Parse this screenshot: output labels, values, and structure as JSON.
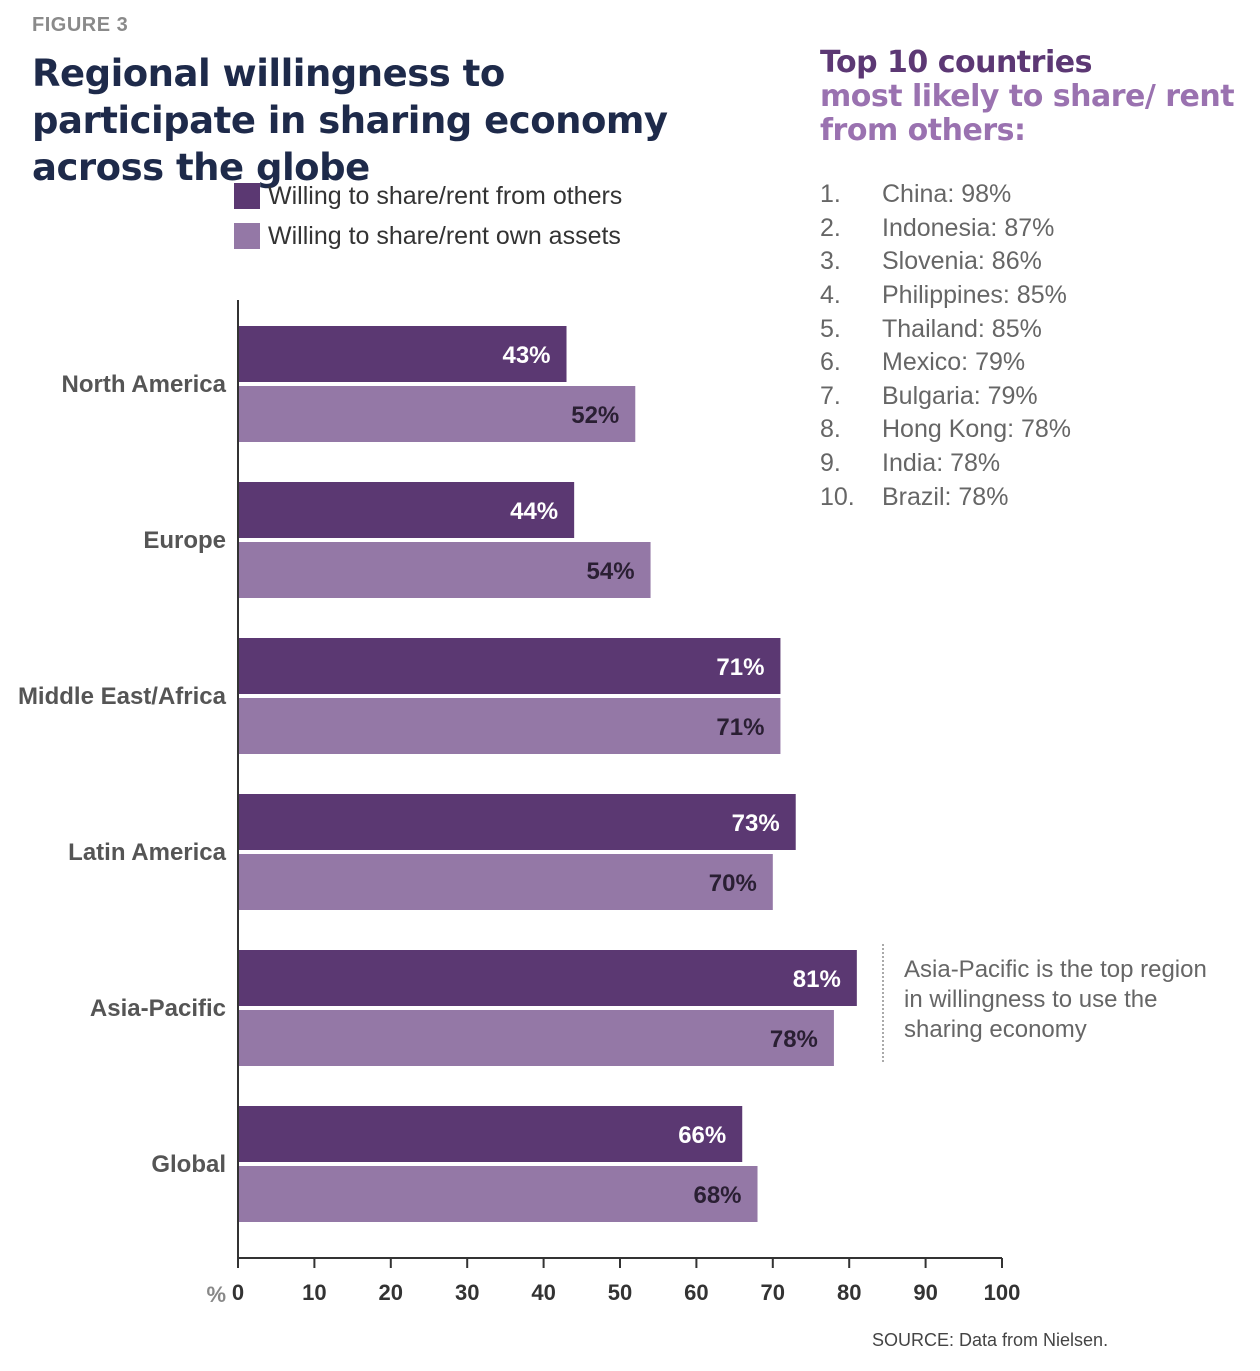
{
  "figure_label": "FIGURE 3",
  "title": "Regional willingness to participate in sharing economy across the globe",
  "top_heading_line1": "Top 10 countries",
  "top_heading_line2": "most likely to share/ rent from others:",
  "top_countries": [
    {
      "rank": "1.",
      "text": "China: 98%"
    },
    {
      "rank": "2.",
      "text": "Indonesia: 87%"
    },
    {
      "rank": "3.",
      "text": "Slovenia: 86%"
    },
    {
      "rank": "4.",
      "text": "Philippines: 85%"
    },
    {
      "rank": "5.",
      "text": "Thailand: 85%"
    },
    {
      "rank": "6.",
      "text": "Mexico: 79%"
    },
    {
      "rank": "7.",
      "text": "Bulgaria: 79%"
    },
    {
      "rank": "8.",
      "text": "Hong Kong: 78%"
    },
    {
      "rank": "9.",
      "text": "India: 78%"
    },
    {
      "rank": "10.",
      "text": "Brazil: 78%"
    }
  ],
  "callout": "Asia-Pacific is the top region in willingness to use the sharing economy",
  "source": "SOURCE: Data from Nielsen.",
  "colors": {
    "series1": "#5b3872",
    "series2": "#9478a6",
    "series1_label": "#ffffff",
    "series2_label": "#2a1f33"
  },
  "chart_data": {
    "type": "bar",
    "orientation": "horizontal",
    "categories": [
      "North America",
      "Europe",
      "Middle East/Africa",
      "Latin America",
      "Asia-Pacific",
      "Global"
    ],
    "series": [
      {
        "name": "Willing to share/rent from others",
        "values": [
          43,
          44,
          71,
          73,
          81,
          66
        ],
        "labels": [
          "43%",
          "44%",
          "71%",
          "73%",
          "81%",
          "66%"
        ]
      },
      {
        "name": "Willing to share/rent own assets",
        "values": [
          52,
          54,
          71,
          70,
          78,
          68
        ],
        "labels": [
          "52%",
          "54%",
          "71%",
          "70%",
          "78%",
          "68%"
        ]
      }
    ],
    "x_unit": "%",
    "x_ticks": [
      "0",
      "10",
      "20",
      "30",
      "40",
      "50",
      "60",
      "70",
      "80",
      "90",
      "100"
    ],
    "xlim": [
      0,
      100
    ],
    "legend": "top-left",
    "grid": false
  }
}
